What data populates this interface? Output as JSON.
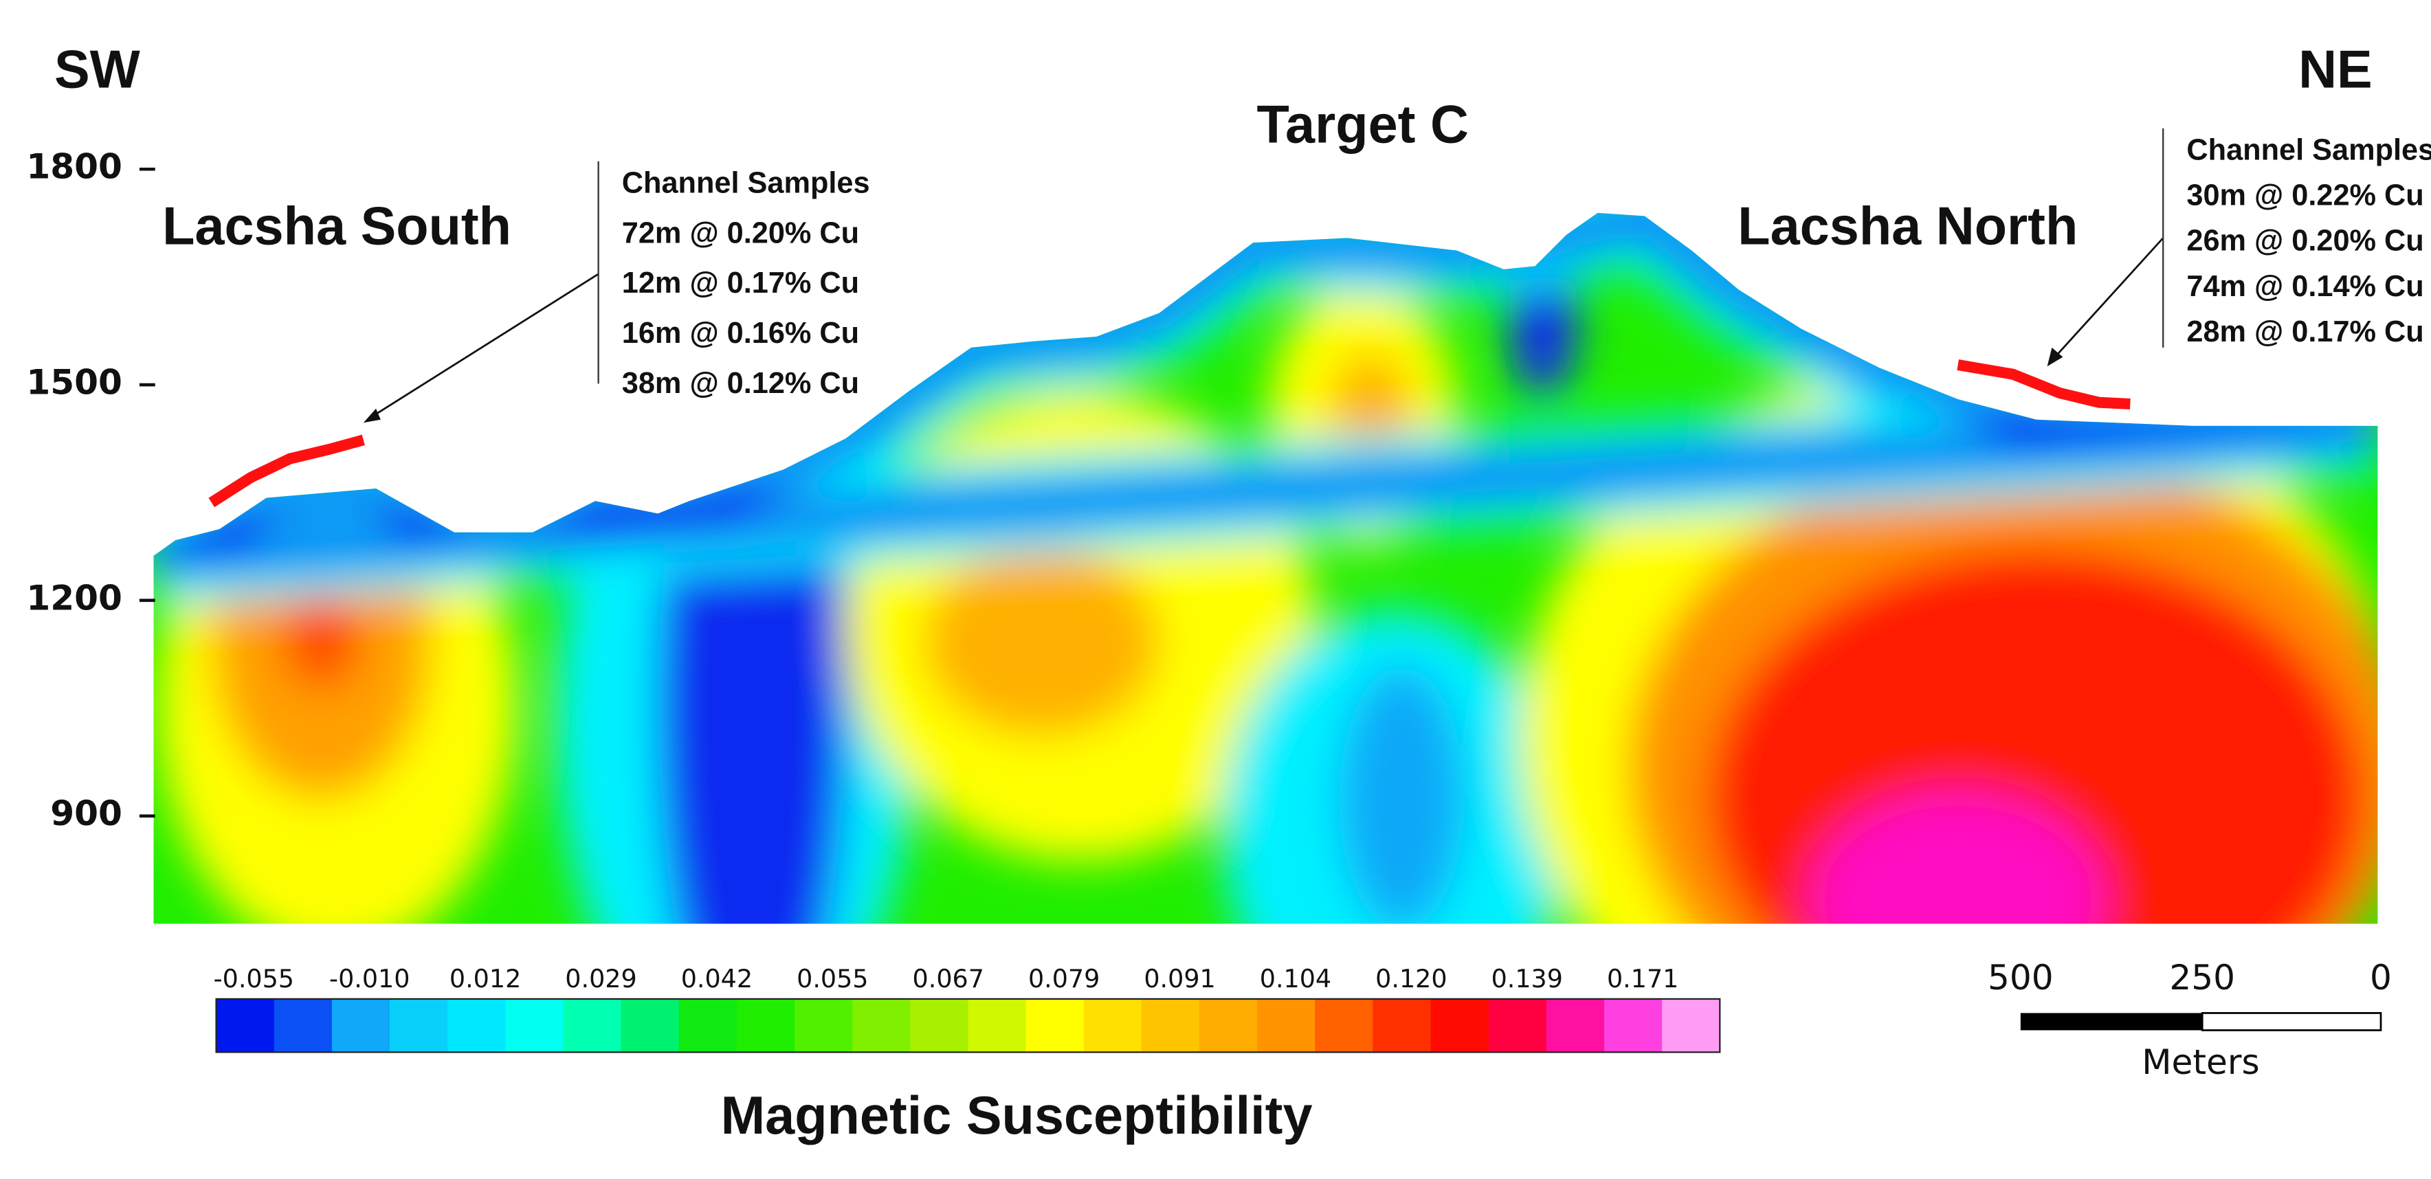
{
  "labels": {
    "left": "SW",
    "right": "NE",
    "title": "Target C",
    "south": "Lacsha South",
    "north": "Lacsha North"
  },
  "annotations": [
    {
      "heading": "Channel Samples",
      "lines": [
        "72m @ 0.20% Cu",
        "12m @ 0.17% Cu",
        "16m @ 0.16% Cu",
        "38m @ 0.12% Cu"
      ]
    },
    {
      "heading": "Channel Samples",
      "lines": [
        "30m @ 0.22% Cu",
        "26m @ 0.20% Cu",
        "74m @ 0.14% Cu",
        "28m @ 0.17% Cu"
      ]
    }
  ],
  "elevation_axis": {
    "ylim": [
      750,
      1800
    ],
    "ticks": [
      900,
      1200,
      1500,
      1800
    ]
  },
  "colorbar": {
    "title": "Magnetic Susceptibility",
    "labels": [
      "-0.055",
      "-0.010",
      "0.012",
      "0.029",
      "0.042",
      "0.055",
      "0.067",
      "0.079",
      "0.091",
      "0.104",
      "0.120",
      "0.139",
      "0.171"
    ]
  },
  "scale_bar": {
    "labels": [
      "500",
      "250",
      "0"
    ],
    "unit": "Meters"
  }
}
